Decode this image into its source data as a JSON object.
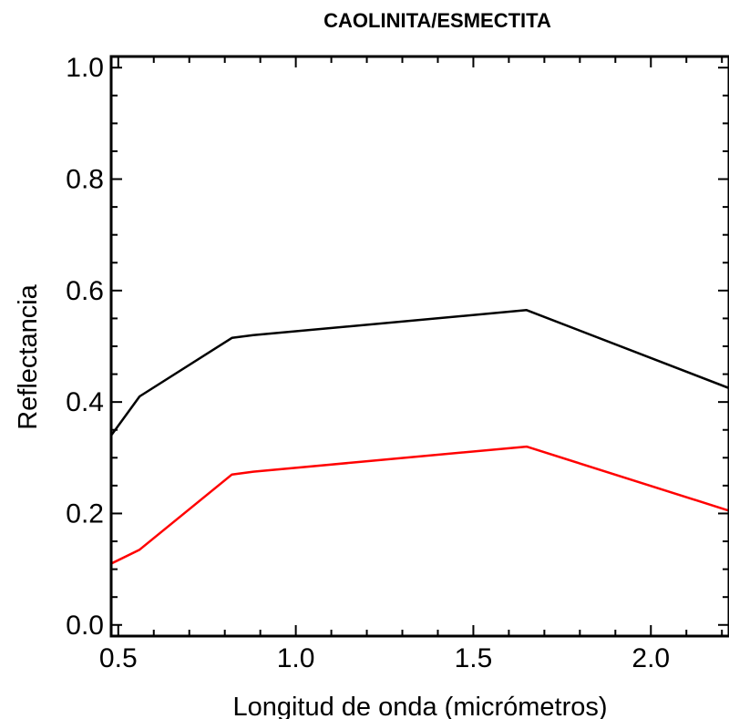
{
  "chart_data": {
    "type": "line",
    "title": "CAOLINITA/ESMECTITA",
    "xlabel": "Longitud de onda (micrómetros)",
    "ylabel": "Reflectancia",
    "xlim": [
      0.48,
      2.22
    ],
    "ylim": [
      -0.02,
      1.02
    ],
    "x_ticks": [
      {
        "value": 0.5,
        "label": "0.5"
      },
      {
        "value": 1.0,
        "label": "1.0"
      },
      {
        "value": 1.5,
        "label": "1.5"
      },
      {
        "value": 2.0,
        "label": "2.0"
      }
    ],
    "y_ticks": [
      {
        "value": 0.0,
        "label": "0.0"
      },
      {
        "value": 0.2,
        "label": "0.2"
      },
      {
        "value": 0.4,
        "label": "0.4"
      },
      {
        "value": 0.6,
        "label": "0.6"
      },
      {
        "value": 0.8,
        "label": "0.8"
      },
      {
        "value": 1.0,
        "label": "1.0"
      }
    ],
    "grid": false,
    "legend": "none",
    "series": [
      {
        "color": "#000000",
        "x": [
          0.48,
          0.56,
          0.82,
          0.88,
          1.65,
          2.22
        ],
        "y": [
          0.34,
          0.41,
          0.515,
          0.52,
          0.565,
          0.425
        ]
      },
      {
        "color": "#ff0000",
        "x": [
          0.48,
          0.56,
          0.82,
          0.88,
          1.65,
          2.22
        ],
        "y": [
          0.11,
          0.135,
          0.27,
          0.275,
          0.32,
          0.205
        ]
      }
    ]
  }
}
